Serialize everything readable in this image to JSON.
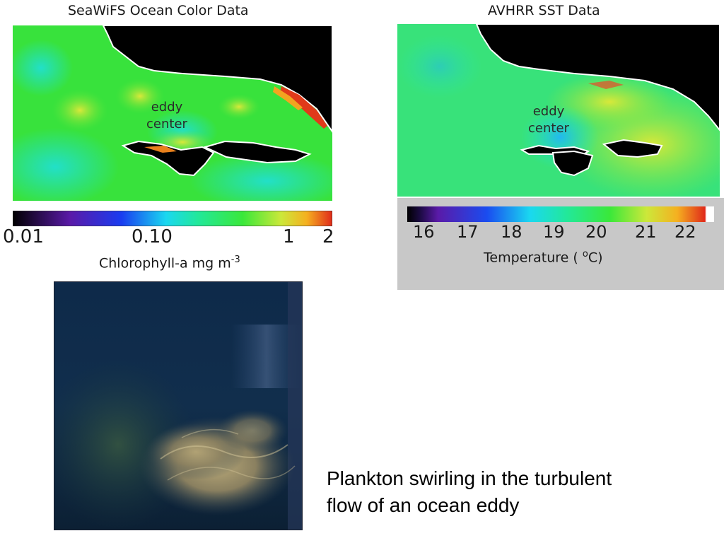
{
  "seawifs": {
    "title": "SeaWiFS Ocean Color Data",
    "eddy_label_line1": "eddy",
    "eddy_label_line2": "center",
    "colorbar_ticks": [
      "0.01",
      "0.10",
      "1",
      "2"
    ],
    "unit_label": "Chlorophyll-a mg m",
    "unit_exponent": "-3"
  },
  "avhrr": {
    "title": "AVHRR SST Data",
    "eddy_label_line1": "eddy",
    "eddy_label_line2": "center",
    "colorbar_ticks": [
      "16",
      "17",
      "18",
      "19",
      "20",
      "21",
      "22"
    ],
    "unit_label": "Temperature ( ",
    "unit_degree": "o",
    "unit_suffix": "C)"
  },
  "caption": {
    "line1": "Plankton swirling in the turbulent",
    "line2": "flow of an ocean eddy"
  },
  "colors": {
    "land": "#000000",
    "ocean_green": "#33e63a",
    "ocean_cyan": "#22e8b0",
    "sst_bg": "#c8c8c8"
  }
}
